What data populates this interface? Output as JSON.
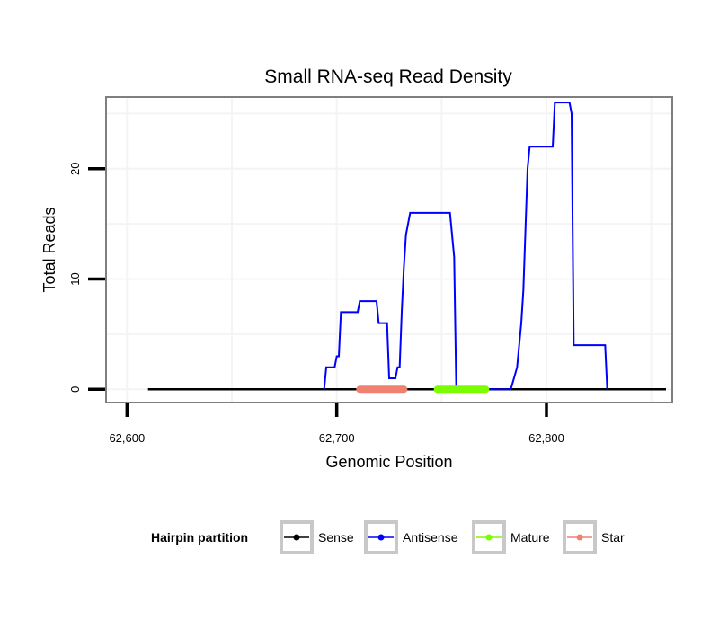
{
  "chart_data": {
    "type": "line",
    "title": "Small RNA-seq Read Density",
    "xlabel": "Genomic Position",
    "ylabel": "Total Reads",
    "xlim": [
      62590,
      62860
    ],
    "ylim": [
      -1.2,
      26.5
    ],
    "x_ticks": [
      {
        "value": 62600,
        "label": "62,600"
      },
      {
        "value": 62700,
        "label": "62,700"
      },
      {
        "value": 62800,
        "label": "62,800"
      }
    ],
    "y_ticks": [
      {
        "value": 0,
        "label": "0"
      },
      {
        "value": 10,
        "label": "10"
      },
      {
        "value": 20,
        "label": "20"
      }
    ],
    "grid": true,
    "legend": {
      "title": "Hairpin partition",
      "position": "bottom",
      "entries": [
        {
          "name": "Sense",
          "color": "#000000"
        },
        {
          "name": "Antisense",
          "color": "#0000ff"
        },
        {
          "name": "Mature",
          "color": "#7cfc00"
        },
        {
          "name": "Star",
          "color": "#f08070"
        }
      ]
    },
    "series": [
      {
        "name": "Sense",
        "color": "#000000",
        "points": [
          [
            62610,
            0
          ],
          [
            62857,
            0
          ]
        ]
      },
      {
        "name": "Antisense",
        "color": "#0000ff",
        "points": [
          [
            62694,
            0
          ],
          [
            62695,
            2
          ],
          [
            62699,
            2
          ],
          [
            62700,
            3
          ],
          [
            62701,
            3
          ],
          [
            62702,
            7
          ],
          [
            62710,
            7
          ],
          [
            62711,
            8
          ],
          [
            62719,
            8
          ],
          [
            62720,
            6
          ],
          [
            62724,
            6
          ],
          [
            62725,
            1
          ],
          [
            62728,
            1
          ],
          [
            62729,
            2
          ],
          [
            62730,
            2
          ],
          [
            62731,
            7
          ],
          [
            62732,
            11
          ],
          [
            62733,
            14
          ],
          [
            62735,
            16
          ],
          [
            62754,
            16
          ],
          [
            62756,
            12
          ],
          [
            62757,
            0
          ],
          [
            62783,
            0
          ],
          [
            62786,
            2
          ],
          [
            62788,
            6
          ],
          [
            62789,
            9
          ],
          [
            62791,
            20
          ],
          [
            62792,
            22
          ],
          [
            62803,
            22
          ],
          [
            62804,
            26
          ],
          [
            62811,
            26
          ],
          [
            62812,
            25
          ],
          [
            62813,
            4
          ],
          [
            62828,
            4
          ],
          [
            62829,
            0
          ]
        ]
      },
      {
        "name": "Mature",
        "color": "#7cfc00",
        "points": [
          [
            62748,
            0
          ],
          [
            62771,
            0
          ]
        ]
      },
      {
        "name": "Star",
        "color": "#f08070",
        "points": [
          [
            62711,
            0
          ],
          [
            62732,
            0
          ]
        ]
      }
    ]
  }
}
